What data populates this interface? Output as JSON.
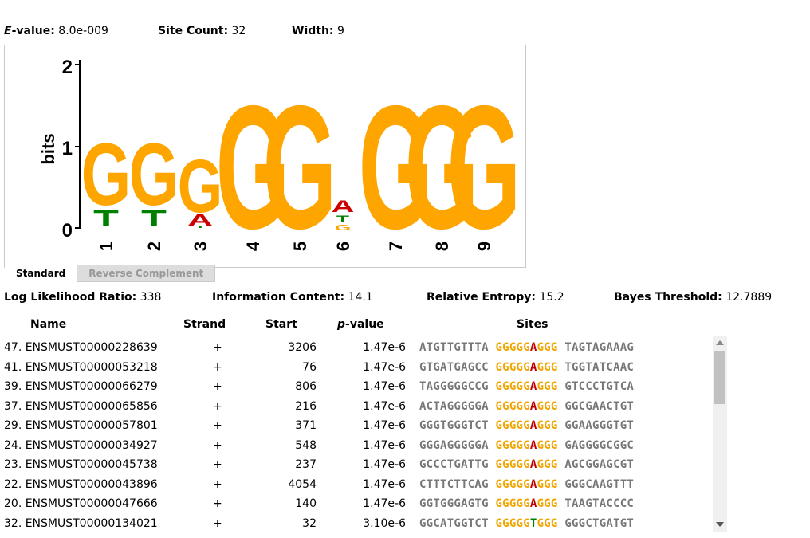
{
  "stats_top": {
    "evalue_label": "E-value:",
    "evalue": "8.0e-009",
    "site_count_label": "Site Count:",
    "site_count": "32",
    "width_label": "Width:",
    "width": "9"
  },
  "logo": {
    "y_axis_label": "bits",
    "y_ticks": [
      "0",
      "1",
      "2"
    ],
    "positions": [
      "1",
      "2",
      "3",
      "4",
      "5",
      "6",
      "7",
      "8",
      "9"
    ],
    "colors": {
      "G": "#FFA500",
      "T": "#008000",
      "A": "#CC0000",
      "C": "#0000CC"
    }
  },
  "tabs": {
    "standard": "Standard",
    "reverse_complement": "Reverse Complement"
  },
  "stats_mid": {
    "llr_label": "Log Likelihood Ratio:",
    "llr": "338",
    "ic_label": "Information Content:",
    "ic": "14.1",
    "re_label": "Relative Entropy:",
    "re": "15.2",
    "bayes_label": "Bayes Threshold:",
    "bayes": "12.7889"
  },
  "table": {
    "headers": {
      "name": "Name",
      "strand": "Strand",
      "start": "Start",
      "pvalue": "p-value",
      "sites": "Sites"
    },
    "rows": [
      {
        "name": "47. ENSMUST00000228639",
        "strand": "+",
        "start": "3206",
        "pvalue": "1.47e-6",
        "left": "ATGTTGTTTA",
        "m1": "GGGGG",
        "mid": "A",
        "m2": "GGG",
        "right": "TAGTAGAAAG"
      },
      {
        "name": "41. ENSMUST00000053218",
        "strand": "+",
        "start": "76",
        "pvalue": "1.47e-6",
        "left": "GTGATGAGCC",
        "m1": "GGGGG",
        "mid": "A",
        "m2": "GGG",
        "right": "TGGTATCAAC"
      },
      {
        "name": "39. ENSMUST00000066279",
        "strand": "+",
        "start": "806",
        "pvalue": "1.47e-6",
        "left": "TAGGGGGCCG",
        "m1": "GGGGG",
        "mid": "A",
        "m2": "GGG",
        "right": "GTCCCTGTCA"
      },
      {
        "name": "37. ENSMUST00000065856",
        "strand": "+",
        "start": "216",
        "pvalue": "1.47e-6",
        "left": "ACTAGGGGGA",
        "m1": "GGGGG",
        "mid": "A",
        "m2": "GGG",
        "right": "GGCGAACTGT"
      },
      {
        "name": "29. ENSMUST00000057801",
        "strand": "+",
        "start": "371",
        "pvalue": "1.47e-6",
        "left": "GGGTGGGTCT",
        "m1": "GGGGG",
        "mid": "A",
        "m2": "GGG",
        "right": "GGAAGGGTGT"
      },
      {
        "name": "24. ENSMUST00000034927",
        "strand": "+",
        "start": "548",
        "pvalue": "1.47e-6",
        "left": "GGGAGGGGGA",
        "m1": "GGGGG",
        "mid": "A",
        "m2": "GGG",
        "right": "GAGGGGCGGC"
      },
      {
        "name": "23. ENSMUST00000045738",
        "strand": "+",
        "start": "237",
        "pvalue": "1.47e-6",
        "left": "GCCCTGATTG",
        "m1": "GGGGG",
        "mid": "A",
        "m2": "GGG",
        "right": "AGCGGAGCGT"
      },
      {
        "name": "22. ENSMUST00000043896",
        "strand": "+",
        "start": "4054",
        "pvalue": "1.47e-6",
        "left": "CTTTCTTCAG",
        "m1": "GGGGG",
        "mid": "A",
        "m2": "GGG",
        "right": "GGGCAAGTTT"
      },
      {
        "name": "20. ENSMUST00000047666",
        "strand": "+",
        "start": "140",
        "pvalue": "1.47e-6",
        "left": "GGTGGGAGTG",
        "m1": "GGGGG",
        "mid": "A",
        "m2": "GGG",
        "right": "TAAGTACCCC"
      },
      {
        "name": "32. ENSMUST00000134021",
        "strand": "+",
        "start": "32",
        "pvalue": "3.10e-6",
        "left": "GGCATGGTCT",
        "m1": "GGGGG",
        "mid": "T",
        "m2": "GGG",
        "right": "GGGCTGATGT"
      }
    ]
  }
}
